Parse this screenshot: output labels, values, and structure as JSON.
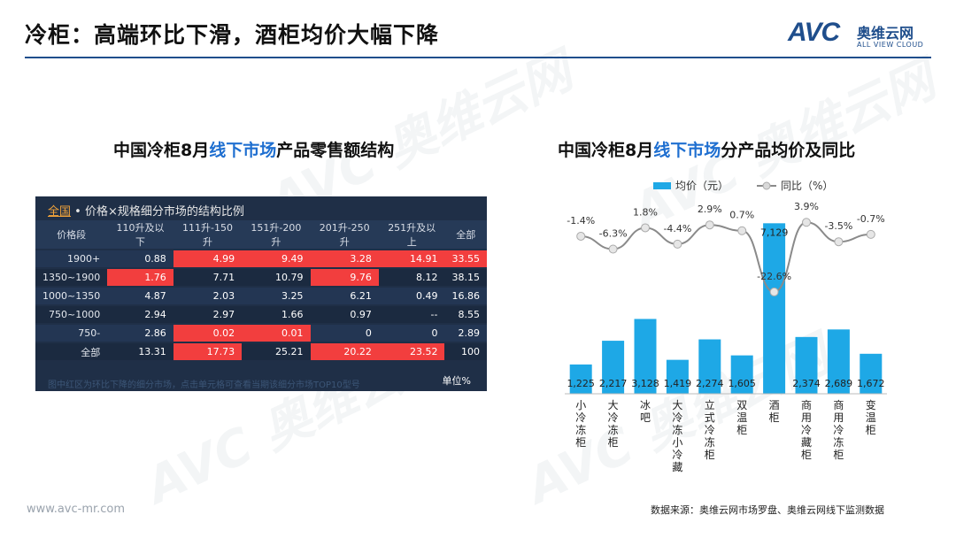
{
  "page": {
    "title": "冷柜：高端环比下滑，酒柜均价大幅下降",
    "logo_mark": "AVC",
    "logo_cn": "奥维云网",
    "logo_en": "ALL VIEW CLOUD",
    "footer_left": "www.avc-mr.com",
    "footer_right": "数据来源：奥维云网市场罗盘、奥维云网线下监测数据"
  },
  "left": {
    "title_pre": "中国冷柜8月",
    "title_hl": "线下市场",
    "title_post": "产品零售额结构",
    "panel_link": "全国",
    "panel_head": " • 价格×规格细分市场的结构比例",
    "columns": [
      "价格段",
      "110升及以下",
      "111升-150升",
      "151升-200升",
      "201升-250升",
      "251升及以上",
      "全部"
    ],
    "rows": [
      {
        "label": "1900+",
        "cells": [
          "0.88",
          "4.99",
          "9.49",
          "3.28",
          "14.91",
          "33.55"
        ],
        "red": [
          false,
          true,
          true,
          true,
          true,
          true
        ]
      },
      {
        "label": "1350~1900",
        "cells": [
          "1.76",
          "7.71",
          "10.79",
          "9.76",
          "8.12",
          "38.15"
        ],
        "red": [
          true,
          false,
          false,
          true,
          false,
          false
        ]
      },
      {
        "label": "1000~1350",
        "cells": [
          "4.87",
          "2.03",
          "3.25",
          "6.21",
          "0.49",
          "16.86"
        ],
        "red": [
          false,
          false,
          false,
          false,
          false,
          false
        ]
      },
      {
        "label": "750~1000",
        "cells": [
          "2.94",
          "2.97",
          "1.66",
          "0.97",
          "--",
          "8.55"
        ],
        "red": [
          false,
          false,
          false,
          false,
          false,
          false
        ]
      },
      {
        "label": "750-",
        "cells": [
          "2.86",
          "0.02",
          "0.01",
          "0",
          "0",
          "2.89"
        ],
        "red": [
          false,
          true,
          true,
          false,
          false,
          false
        ]
      },
      {
        "label": "全部",
        "cells": [
          "13.31",
          "17.73",
          "25.21",
          "20.22",
          "23.52",
          "100"
        ],
        "red": [
          false,
          true,
          false,
          true,
          true,
          false
        ]
      }
    ],
    "note": "图中红区为环比下降的细分市场，点击单元格可查看当期该细分市场TOP10型号",
    "unit": "单位%"
  },
  "right": {
    "title_pre": "中国冷柜8月",
    "title_hl": "线下市场",
    "title_post": "分产品均价及同比"
  },
  "chart_data": {
    "type": "bar",
    "categories": [
      "小冷冻柜",
      "大冷冻柜",
      "冰吧",
      "大冷冻小冷藏",
      "立式冷冻柜",
      "双温柜",
      "酒柜",
      "商用冷藏柜",
      "商用冷冻柜",
      "变温柜"
    ],
    "series": [
      {
        "name": "均价（元）",
        "type": "bar",
        "values": [
          1225,
          2217,
          3128,
          1419,
          2274,
          1605,
          7129,
          2374,
          2689,
          1672
        ],
        "labels": [
          "1,225",
          "2,217",
          "3,128",
          "1,419",
          "2,274",
          "1,605",
          "7,129",
          "2,374",
          "2,689",
          "1,672"
        ],
        "color": "#1ea8e6"
      },
      {
        "name": "同比（%）",
        "type": "line",
        "values": [
          -1.4,
          -6.3,
          1.8,
          -4.4,
          2.9,
          0.7,
          -22.6,
          3.9,
          -3.5,
          -0.7
        ],
        "labels": [
          "-1.4%",
          "-6.3%",
          "1.8%",
          "-4.4%",
          "2.9%",
          "0.7%",
          "-22.6%",
          "3.9%",
          "-3.5%",
          "-0.7%"
        ],
        "color": "#8a8a8a"
      }
    ],
    "bar_ylim": [
      0,
      8000
    ],
    "line_ylim": [
      -26,
      6
    ],
    "legend": "top",
    "grid": false
  },
  "watermark": {
    "text": "AVC 奥维云网",
    "sub": "ALL VIEW CLOUD"
  }
}
